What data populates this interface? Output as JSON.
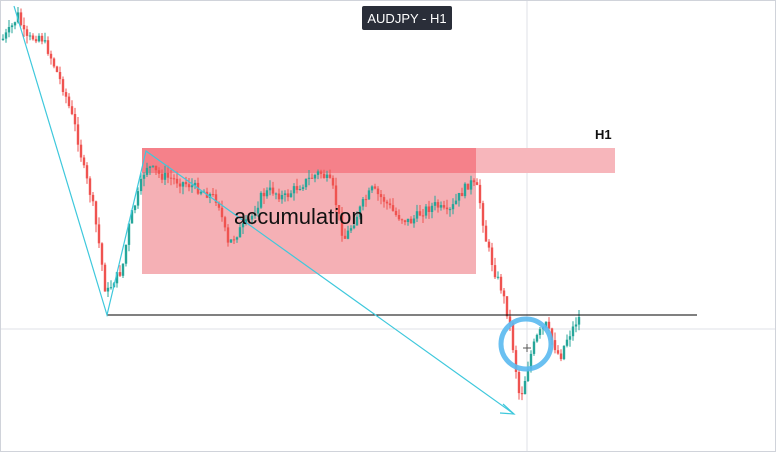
{
  "header": {
    "symbol": "AUDJPY - H1"
  },
  "annotations": {
    "zone_label": "accumulation",
    "h1_label": "H1"
  },
  "colors": {
    "bull": "#26a69a",
    "bear": "#ef5350",
    "zone_fill": "#f4a7ad",
    "zone_top": "#f47e88",
    "h1_zone": "#f7b6bb",
    "trendline": "#3ec8dc",
    "circle": "#5ab9f0",
    "level_line": "#000000",
    "crosshair": "#c8ccd4"
  },
  "icons": {
    "crosshair": "crosshair-icon"
  }
}
